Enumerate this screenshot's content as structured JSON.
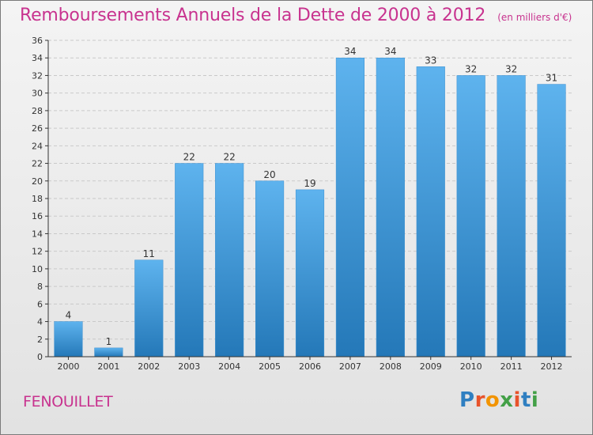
{
  "header": {
    "title": "Remboursements Annuels de la Dette de 2000 à 2012",
    "subtitle": "(en milliers d'€)"
  },
  "footer": {
    "commune": "FENOUILLET",
    "logo_text": "Proxiti",
    "logo_colors": [
      "#2f7fc1",
      "#e8532b",
      "#f29400",
      "#43a047",
      "#e8532b",
      "#2f7fc1",
      "#43a047"
    ]
  },
  "colors": {
    "title": "#c8338f",
    "bar_top": "#5eb3ee",
    "bar_bottom": "#2478b8",
    "axis": "#333333"
  },
  "chart_data": {
    "type": "bar",
    "title": "Remboursements Annuels de la Dette de 2000 à 2012",
    "subtitle": "(en milliers d'€)",
    "xlabel": "",
    "ylabel": "",
    "categories": [
      "2000",
      "2001",
      "2002",
      "2003",
      "2004",
      "2005",
      "2006",
      "2007",
      "2008",
      "2009",
      "2010",
      "2011",
      "2012"
    ],
    "values": [
      4,
      1,
      11,
      22,
      22,
      20,
      19,
      34,
      34,
      33,
      32,
      32,
      31
    ],
    "ylim": [
      0,
      36
    ],
    "yticks": [
      0,
      2,
      4,
      6,
      8,
      10,
      12,
      14,
      16,
      18,
      20,
      22,
      24,
      26,
      28,
      30,
      32,
      34,
      36
    ],
    "grid": true,
    "data_labels": true
  }
}
